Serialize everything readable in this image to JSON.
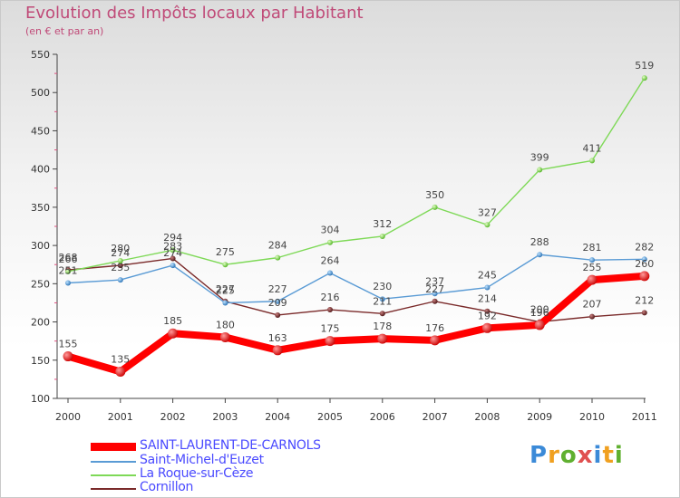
{
  "title": "Evolution des Impôts locaux par Habitant",
  "subtitle": "(en € et par an)",
  "brand": "Proxiti",
  "chart_data": {
    "type": "line",
    "title": "Evolution des Impôts locaux par Habitant",
    "subtitle": "(en € et par an)",
    "xlabel": "",
    "ylabel": "",
    "categories": [
      "2000",
      "2001",
      "2002",
      "2003",
      "2004",
      "2005",
      "2006",
      "2007",
      "2008",
      "2009",
      "2010",
      "2011"
    ],
    "ylim": [
      100,
      550
    ],
    "yticks": [
      100,
      150,
      200,
      250,
      300,
      350,
      400,
      450,
      500,
      550
    ],
    "grid": false,
    "legend_position": "bottom-left",
    "series": [
      {
        "name": "SAINT-LAURENT-DE-CARNOLS",
        "color": "#ff0000",
        "values": [
          155,
          135,
          185,
          180,
          163,
          175,
          178,
          176,
          192,
          196,
          255,
          260
        ]
      },
      {
        "name": "Saint-Michel-d'Euzet",
        "color": "#5a9bd5",
        "values": [
          251,
          255,
          274,
          225,
          227,
          264,
          230,
          237,
          245,
          288,
          281,
          282
        ]
      },
      {
        "name": "La Roque-sur-Cèze",
        "color": "#7ed957",
        "values": [
          266,
          280,
          294,
          275,
          284,
          304,
          312,
          350,
          327,
          399,
          411,
          519
        ]
      },
      {
        "name": "Cornillon",
        "color": "#7a2a2a",
        "values": [
          268,
          274,
          283,
          227,
          209,
          216,
          211,
          227,
          214,
          200,
          207,
          212
        ]
      }
    ],
    "value_labels": [
      [
        "155",
        "135",
        "185",
        "180",
        "163",
        "175",
        "178",
        "176",
        "192",
        "196",
        "255",
        "260"
      ],
      [
        "251",
        "255",
        "274",
        "225",
        "227",
        "264",
        "230",
        "237",
        "245",
        "288",
        "281",
        "282"
      ],
      [
        "266",
        "280",
        "294",
        "275",
        "284",
        "304",
        "312",
        "350",
        "327",
        "399",
        "411",
        "519"
      ],
      [
        "268",
        "274",
        "283",
        "227",
        "209",
        "216",
        "211",
        "227",
        "214",
        "200",
        "207",
        "212"
      ]
    ]
  }
}
